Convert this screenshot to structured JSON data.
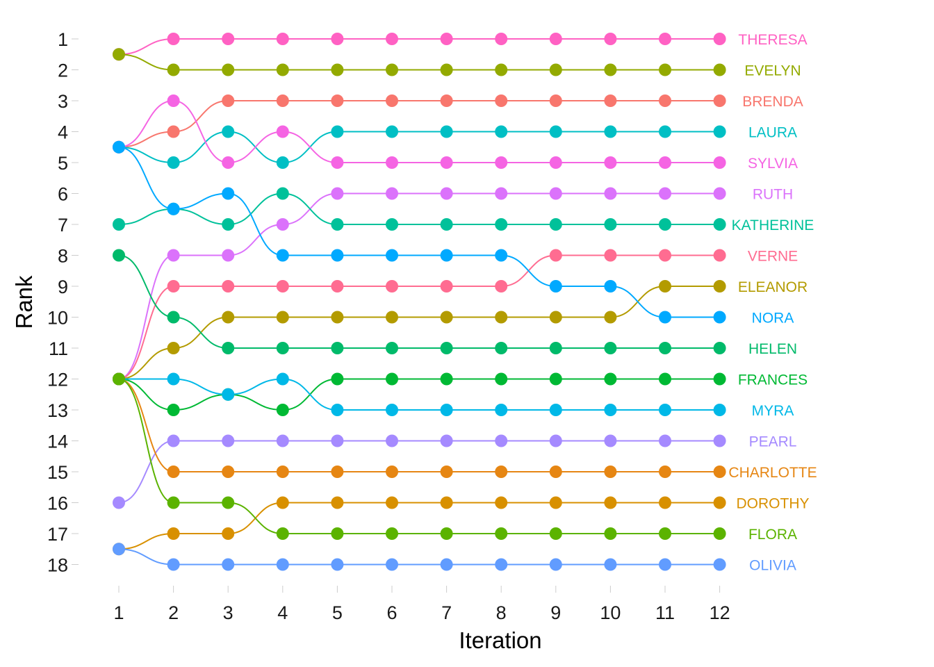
{
  "chart_data": {
    "type": "line",
    "subtype": "bump",
    "xlabel": "Iteration",
    "ylabel": "Rank",
    "x": [
      1,
      2,
      3,
      4,
      5,
      6,
      7,
      8,
      9,
      10,
      11,
      12
    ],
    "x_ticks": [
      "1",
      "2",
      "3",
      "4",
      "5",
      "6",
      "7",
      "8",
      "9",
      "10",
      "11",
      "12"
    ],
    "y_ticks": [
      "1",
      "2",
      "3",
      "4",
      "5",
      "6",
      "7",
      "8",
      "9",
      "10",
      "11",
      "12",
      "13",
      "14",
      "15",
      "16",
      "17",
      "18"
    ],
    "xlim": [
      1,
      12
    ],
    "ylim": [
      18,
      1
    ],
    "y_reversed": true,
    "grid": false,
    "legend": "direct labels at right end of each series",
    "series": [
      {
        "name": "THERESA",
        "color": "#FF61C3",
        "values": [
          1.5,
          1,
          1,
          1,
          1,
          1,
          1,
          1,
          1,
          1,
          1,
          1
        ]
      },
      {
        "name": "EVELYN",
        "color": "#93AA00",
        "values": [
          1.5,
          2,
          2,
          2,
          2,
          2,
          2,
          2,
          2,
          2,
          2,
          2
        ]
      },
      {
        "name": "BRENDA",
        "color": "#F8766D",
        "values": [
          4.5,
          4,
          3,
          3,
          3,
          3,
          3,
          3,
          3,
          3,
          3,
          3
        ]
      },
      {
        "name": "LAURA",
        "color": "#00BFC4",
        "values": [
          4.5,
          5,
          4,
          5,
          4,
          4,
          4,
          4,
          4,
          4,
          4,
          4
        ]
      },
      {
        "name": "SYLVIA",
        "color": "#F564E3",
        "values": [
          4.5,
          3,
          5,
          4,
          5,
          5,
          5,
          5,
          5,
          5,
          5,
          5
        ]
      },
      {
        "name": "RUTH",
        "color": "#DB72FB",
        "values": [
          12,
          8,
          8,
          7,
          6,
          6,
          6,
          6,
          6,
          6,
          6,
          6
        ]
      },
      {
        "name": "KATHERINE",
        "color": "#00C19A",
        "values": [
          7,
          6.5,
          7,
          6,
          7,
          7,
          7,
          7,
          7,
          7,
          7,
          7
        ]
      },
      {
        "name": "VERNE",
        "color": "#FF6C91",
        "values": [
          12,
          9,
          9,
          9,
          9,
          9,
          9,
          9,
          8,
          8,
          8,
          8
        ]
      },
      {
        "name": "ELEANOR",
        "color": "#B39B00",
        "values": [
          12,
          11,
          10,
          10,
          10,
          10,
          10,
          10,
          10,
          10,
          9,
          9
        ]
      },
      {
        "name": "NORA",
        "color": "#00A9FF",
        "values": [
          4.5,
          6.5,
          6,
          8,
          8,
          8,
          8,
          8,
          9,
          9,
          10,
          10
        ]
      },
      {
        "name": "HELEN",
        "color": "#00BA6A",
        "values": [
          8,
          10,
          11,
          11,
          11,
          11,
          11,
          11,
          11,
          11,
          11,
          11
        ]
      },
      {
        "name": "FRANCES",
        "color": "#00B934",
        "values": [
          12,
          13,
          12.5,
          13,
          12,
          12,
          12,
          12,
          12,
          12,
          12,
          12
        ]
      },
      {
        "name": "MYRA",
        "color": "#00B8E7",
        "values": [
          12,
          12,
          12.5,
          12,
          13,
          13,
          13,
          13,
          13,
          13,
          13,
          13
        ]
      },
      {
        "name": "PEARL",
        "color": "#A58AFF",
        "values": [
          16,
          14,
          14,
          14,
          14,
          14,
          14,
          14,
          14,
          14,
          14,
          14
        ]
      },
      {
        "name": "CHARLOTTE",
        "color": "#E68613",
        "values": [
          12,
          15,
          15,
          15,
          15,
          15,
          15,
          15,
          15,
          15,
          15,
          15
        ]
      },
      {
        "name": "DOROTHY",
        "color": "#D89000",
        "values": [
          17.5,
          17,
          17,
          16,
          16,
          16,
          16,
          16,
          16,
          16,
          16,
          16
        ]
      },
      {
        "name": "FLORA",
        "color": "#5BB300",
        "values": [
          12,
          16,
          16,
          17,
          17,
          17,
          17,
          17,
          17,
          17,
          17,
          17
        ]
      },
      {
        "name": "OLIVIA",
        "color": "#619CFF",
        "values": [
          17.5,
          18,
          18,
          18,
          18,
          18,
          18,
          18,
          18,
          18,
          18,
          18
        ]
      }
    ]
  }
}
